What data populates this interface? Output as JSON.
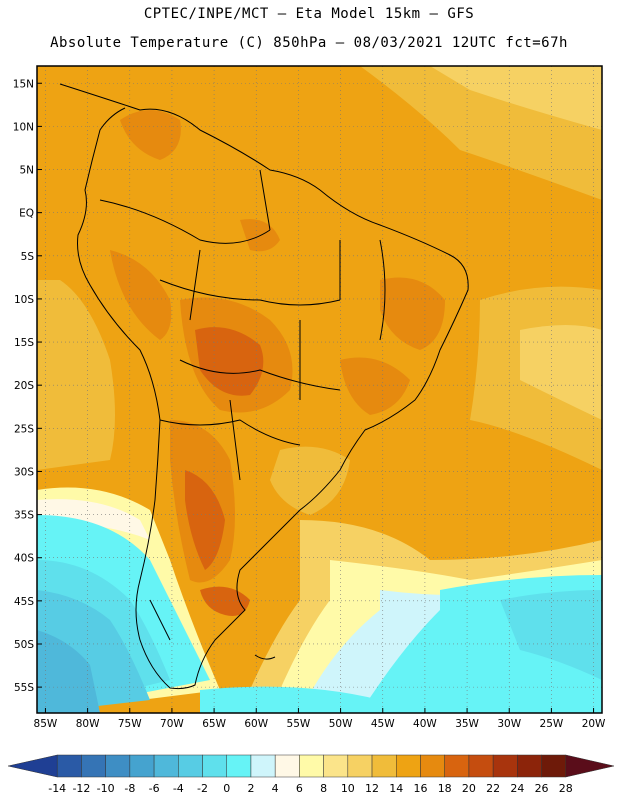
{
  "header": {
    "line1": "CPTEC/INPE/MCT –  Eta Model 15km – GFS",
    "line2": "Absolute Temperature (C) 850hPa – 08/03/2021 12UTC fct=67h"
  },
  "map": {
    "lat_labels": [
      "15N",
      "10N",
      "5N",
      "EQ",
      "5S",
      "10S",
      "15S",
      "20S",
      "25S",
      "30S",
      "35S",
      "40S",
      "45S",
      "50S",
      "55S"
    ],
    "lat_values": [
      15,
      10,
      5,
      0,
      -5,
      -10,
      -15,
      -20,
      -25,
      -30,
      -35,
      -40,
      -45,
      -50,
      -55
    ],
    "lon_labels": [
      "85W",
      "80W",
      "75W",
      "70W",
      "65W",
      "60W",
      "55W",
      "50W",
      "45W",
      "40W",
      "35W",
      "30W",
      "25W",
      "20W"
    ],
    "lon_values": [
      -85,
      -80,
      -75,
      -70,
      -65,
      -60,
      -55,
      -50,
      -45,
      -40,
      -35,
      -30,
      -25,
      -20
    ],
    "lat_range": [
      -58,
      17
    ],
    "lon_range": [
      -86,
      -19
    ]
  },
  "colorbar": {
    "labels": [
      "-14",
      "-12",
      "-10",
      "-8",
      "-6",
      "-4",
      "-2",
      "0",
      "2",
      "4",
      "6",
      "8",
      "10",
      "12",
      "14",
      "16",
      "18",
      "20",
      "22",
      "24",
      "26",
      "28"
    ],
    "colors": [
      "#1f3f94",
      "#2a5aa6",
      "#3574b5",
      "#3e8ec4",
      "#45a3cf",
      "#4fb8da",
      "#57cce4",
      "#5fe0ec",
      "#66f3f6",
      "#cff5fb",
      "#fff8e6",
      "#fffaa8",
      "#fbe48a",
      "#f6d163",
      "#f0bc3a",
      "#eea313",
      "#e68a0f",
      "#d8640f",
      "#c54d0f",
      "#a8340d",
      "#8c240a",
      "#6e1a09",
      "#5a0d1a"
    ]
  }
}
